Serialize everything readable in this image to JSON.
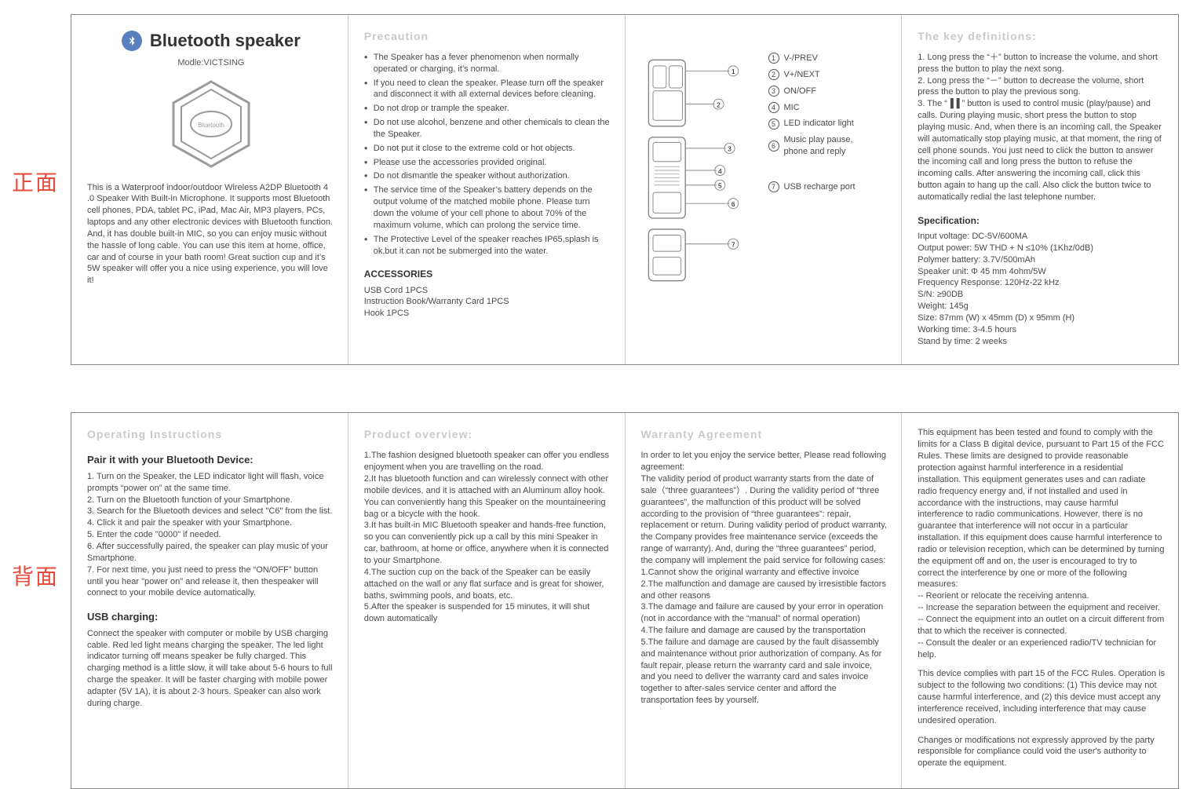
{
  "colors": {
    "accent_red": "#e74c3c",
    "bt_blue": "#5a7fbf",
    "text": "#4a4a4a",
    "heading_gray": "#c9c9c9",
    "border": "#888888"
  },
  "side": {
    "front": "正面",
    "back": "背面"
  },
  "p1": {
    "title": "Bluetooth speaker",
    "modle": "Modle:VICTSING",
    "desc": "This is a Waterproof indoor/outdoor Wireless A2DP Bluetooth 4 .0 Speaker With Built-in Microphone. It supports most  Bluetooth cell phones, PDA, tablet PC, iPad, Mac Air, MP3 players, PCs, laptops and any other electronic devices with Bluetooth function. And, it has double built-in MIC, so you  can enjoy music without the hassle of long cable. You can use  this item at home, office, car and of course in your bath room! Great suction cup and it’s 5W speaker will offer you a nice using experience, you will love it!"
  },
  "p2": {
    "head": "Precaution",
    "items": [
      "The Speaker has a fever phenomenon when normally operated or charging, it’s normal.",
      "If you need to clean the speaker. Please turn off the speaker and disconnect it with all external devices before cleaning.",
      "Do not drop or trample the speaker.",
      "Do not use alcohol, benzene and other chemicals to clean the the Speaker.",
      "Do not put it close to the extreme cold or hot objects.",
      "Please use the accessories provided original.",
      "Do not dismantle the speaker without authorization.",
      "The service time of the Speaker’s battery depends on the output volume of the matched mobile phone. Please turn down the volume of your cell phone to about 70% of the maximum volume, which can prolong the service time.",
      "The Protective Level of the speaker reaches IP65,splash is ok,but it can not be submerged into the water."
    ],
    "acc_head": "ACCESSORIES",
    "acc": "USB Cord   1PCS\nInstruction Book/Warranty Card  1PCS\nHook  1PCS"
  },
  "p3": {
    "labels": {
      "1": "V-/PREV",
      "2": "V+/NEXT",
      "3": "ON/OFF",
      "4": "MIC",
      "5": "LED indicator light",
      "6": "Music play pause, phone and reply",
      "7": "USB recharge port"
    }
  },
  "p4": {
    "head": "The key definitions:",
    "body": "1. Long press the “＋” button to increase the volume, and short press the button to play the next song.\n2. Long press the “－” button to decrease the volume, short press the button to play the previous song.\n3. The “▐▐ ” button is used to control music (play/pause) and calls. During playing music, short press the button to stop  playing music. And, when there is an incoming call, the Speaker will automatically stop playing music, at that moment,  the ring of cell phone sounds. You just need to click the  button to answer the incoming call and long press the button  to refuse the incoming calls. After answering the incoming call, click this button again to hang up the call. Also click the  button twice to automatically redial the last telephone number.",
    "spec_head": "Specification:",
    "spec": "Input voltage: DC-5V/600MA\nOutput power: 5W THD + N ≤10% (1Khz/0dB)\nPolymer battery: 3.7V/500mAh\nSpeaker unit: Φ 45 mm 4ohm/5W\nFrequency Response: 120Hz-22 kHz\nS/N: ≥90DB\nWeight: 145g\nSize: 87mm (W) x 45mm (D) x 95mm (H)\nWorking time: 3-4.5 hours\nStand by time: 2 weeks"
  },
  "p5": {
    "head": "Operating Instructions",
    "pair_head": "Pair it with your Bluetooth Device:",
    "pair": "1. Turn on the Speaker, the LED indicator light will flash, voice prompts “power on” at the same time.\n2. Turn on the Bluetooth function of your Smartphone.\n3. Search for the Bluetooth devices and select \"C6\" from the list.\n4. Click it and pair the speaker with your Smartphone.\n5. Enter the code \"0000\" if needed.\n6. After successfully paired, the speaker can play music of your  Smartphone.\n7. For next time, you just need to press the “ON/OFF” button  until you hear \"power on\" and release it, then thespeaker will  connect to your mobile device automatically.",
    "usb_head": "USB charging:",
    "usb": "Connect the speaker with computer or mobile by USB charging cable. Red led light means charging the speaker. The led light  indicator turning off means speaker be fully charged. This charging method is a little slow, it will take about 5-6 hours to full charge the speaker. It will be faster charging with mobile  power adapter (5V 1A), it is about 2-3 hours. Speaker can also  work during charge."
  },
  "p6": {
    "head": "Product overview:",
    "body": "1.The fashion designed bluetooth speaker can offer you endless enjoyment when you are travelling on the road.\n2.It has bluetooth function and can wirelessly connect with other mobile devices, and it is attached with an Aluminum alloy hook. You can conveniently hang this  Speaker on the mountaineering bag or a bicycle with the hook.\n3.It has built-in MIC Bluetooth speaker and hands-free function, so you can conveniently pick up a call by this mini Speaker in car, bathroom, at home or office, anywhere when it is connected to your Smartphone.\n4.The suction cup on the back of the Speaker can be easily attached on the wall or any flat surface and is great for shower, baths, swimming pools, and boats, etc.\n5.After the speaker is suspended for 15 minutes, it will  shut down automatically"
  },
  "p7": {
    "head": "Warranty Agreement",
    "body": "In order to let you enjoy the service better, Please read following agreement:\nThe validity period of product warranty starts from the date of sale（“three guarantees”）. During the validity period of “three guarantees”, the malfunction of this product will be solved according to the provision of “three guarantees”: repair, replacement or return. During validity period of product warranty, the Company provides free maintenance service (exceeds the range of warranty). And, during the “three guarantees” period, the company will implement the paid service for following cases:\n1.Cannot show the original warranty and effective invoice\n2.The malfunction and damage are caused by irresistible factors and other reasons\n3.The damage and failure are caused by your error in operation  (not in accordance with the “manual” of normal operation)\n4.The failure and damage are caused by the transportation\n5.The failure and damage are caused by the fault disassembly and maintenance without prior authorization of company. As for fault repair, please return the warranty card and sale invoice, and you need to deliver the warranty card and sales  invoice together to after-sales service center and afford the  transportation fees by yourself."
  },
  "p8": {
    "body1": "This equipment has been tested and found to comply with the limits for a Class B digital device, pursuant to Part 15 of the FCC  Rules. These limits are designed to provide reasonable protection against harmful interference in a residential installation. This equipment generates uses and can radiate radio frequency energy  and, if not installed and used in accordance with the instructions, may cause harmful interference to radio communications. However,  there is no guarantee that interference will not occur in a particular  installation. If this equipment does cause harmful interference to radio or television reception, which can be determined by turning the equipment off and on, the user is encouraged to try to correct the interference by one or more of the following measures:\n-- Reorient or relocate the receiving antenna.\n-- Increase the separation between the equipment and receiver.\n-- Connect the equipment into an outlet on a circuit different from that to which the receiver is connected.\n-- Consult the dealer or an experienced radio/TV technician for help.",
    "body2": "     This device complies with part 15 of the FCC Rules. Operation is subject to the following two conditions: (1) This device may not cause harmful interference, and (2) this device must accept any  interference received, including interference that may cause undesired operation.",
    "body3": "     Changes or modifications not expressly approved by the party responsible for compliance could void the user's authority to operate the equipment."
  }
}
